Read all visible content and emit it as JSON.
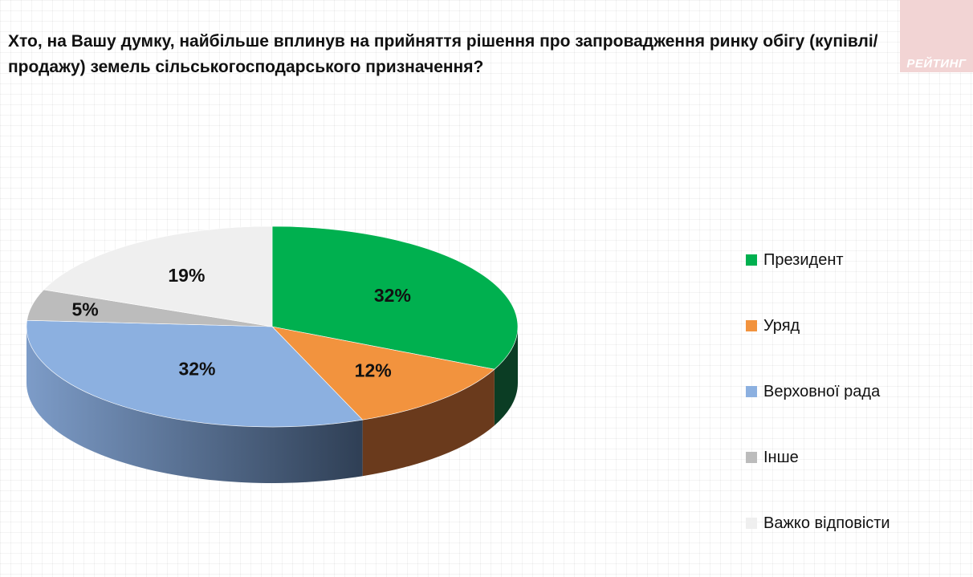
{
  "title": "Хто, на Вашу думку, найбільше вплинув на прийняття рішення про запровадження ринку обігу (купівлі/продажу) земель сільськогосподарського призначення?",
  "logo_text": "РЕЙТИНГ",
  "chart_data": {
    "type": "pie",
    "title": "Хто, на Вашу думку, найбільше вплинув на прийняття рішення про запровадження ринку обігу (купівлі/продажу) земель сільськогосподарського призначення?",
    "style": "3d",
    "legend_position": "right",
    "categories": [
      "Президент",
      "Уряд",
      "Верховної рада",
      "Інше",
      "Важко відповісти"
    ],
    "values": [
      32,
      12,
      32,
      5,
      19
    ],
    "labels": [
      "32%",
      "12%",
      "32%",
      "5%",
      "19%"
    ],
    "colors": [
      "#00b04f",
      "#f2933e",
      "#8cb0e0",
      "#bcbcbc",
      "#efefef"
    ]
  }
}
